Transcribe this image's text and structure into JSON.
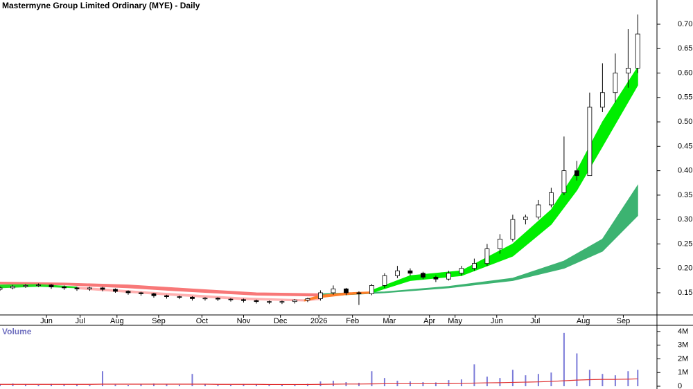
{
  "chart_data": [
    {
      "type": "candlestick",
      "title": "Mastermyne Group Limited Ordinary (MYE) - Daily",
      "x": [
        0,
        8,
        16,
        24,
        32,
        40,
        48,
        56,
        64,
        72,
        80,
        88,
        96,
        104,
        112,
        120,
        128,
        136,
        144,
        152,
        160,
        168,
        176,
        184,
        192,
        200,
        208,
        216,
        224,
        232,
        240,
        248,
        256,
        264,
        272,
        280,
        288,
        296,
        304,
        312,
        320,
        328,
        336,
        344,
        352,
        360,
        368,
        376,
        384,
        392,
        398
      ],
      "open": [
        0.157,
        0.16,
        0.163,
        0.165,
        0.166,
        0.162,
        0.16,
        0.158,
        0.16,
        0.157,
        0.153,
        0.15,
        0.148,
        0.144,
        0.142,
        0.141,
        0.138,
        0.139,
        0.137,
        0.136,
        0.134,
        0.132,
        0.131,
        0.132,
        0.135,
        0.138,
        0.15,
        0.158,
        0.15,
        0.148,
        0.165,
        0.185,
        0.195,
        0.19,
        0.182,
        0.178,
        0.19,
        0.2,
        0.21,
        0.24,
        0.26,
        0.3,
        0.305,
        0.33,
        0.355,
        0.4,
        0.39,
        0.53,
        0.56,
        0.6,
        0.61
      ],
      "high": [
        0.163,
        0.166,
        0.168,
        0.169,
        0.168,
        0.165,
        0.162,
        0.162,
        0.162,
        0.159,
        0.155,
        0.152,
        0.15,
        0.146,
        0.144,
        0.143,
        0.141,
        0.141,
        0.139,
        0.138,
        0.136,
        0.134,
        0.134,
        0.137,
        0.14,
        0.155,
        0.165,
        0.16,
        0.153,
        0.168,
        0.19,
        0.205,
        0.2,
        0.193,
        0.185,
        0.195,
        0.205,
        0.22,
        0.25,
        0.27,
        0.31,
        0.31,
        0.34,
        0.365,
        0.47,
        0.42,
        0.56,
        0.62,
        0.64,
        0.69,
        0.72
      ],
      "low": [
        0.154,
        0.157,
        0.16,
        0.162,
        0.158,
        0.156,
        0.154,
        0.154,
        0.153,
        0.15,
        0.146,
        0.144,
        0.14,
        0.138,
        0.137,
        0.134,
        0.134,
        0.133,
        0.132,
        0.13,
        0.128,
        0.127,
        0.127,
        0.128,
        0.131,
        0.134,
        0.146,
        0.145,
        0.125,
        0.145,
        0.16,
        0.18,
        0.185,
        0.178,
        0.172,
        0.175,
        0.185,
        0.195,
        0.205,
        0.23,
        0.255,
        0.29,
        0.3,
        0.325,
        0.35,
        0.38,
        0.39,
        0.52,
        0.54,
        0.57,
        0.6
      ],
      "close": [
        0.16,
        0.163,
        0.165,
        0.166,
        0.162,
        0.16,
        0.158,
        0.16,
        0.157,
        0.153,
        0.15,
        0.148,
        0.144,
        0.142,
        0.141,
        0.138,
        0.139,
        0.137,
        0.136,
        0.134,
        0.132,
        0.131,
        0.132,
        0.135,
        0.138,
        0.15,
        0.158,
        0.15,
        0.148,
        0.165,
        0.185,
        0.195,
        0.19,
        0.182,
        0.178,
        0.19,
        0.2,
        0.21,
        0.24,
        0.26,
        0.3,
        0.305,
        0.33,
        0.355,
        0.4,
        0.39,
        0.53,
        0.56,
        0.6,
        0.61,
        0.68
      ],
      "bands": [
        {
          "color": "#f87878",
          "x": [
            0,
            40,
            80,
            120,
            160,
            200
          ],
          "upper": [
            0.172,
            0.17,
            0.166,
            0.158,
            0.15,
            0.148
          ],
          "lower": [
            0.168,
            0.166,
            0.16,
            0.152,
            0.145,
            0.143
          ]
        },
        {
          "color": "#3cb371",
          "x": [
            200,
            240,
            280,
            320,
            352,
            376,
            398
          ],
          "upper": [
            0.148,
            0.152,
            0.163,
            0.18,
            0.215,
            0.26,
            0.37
          ],
          "lower": [
            0.143,
            0.15,
            0.16,
            0.175,
            0.2,
            0.235,
            0.308
          ]
        },
        {
          "color": "#ffb0b0",
          "x": [
            48,
            100,
            150,
            190,
            200
          ],
          "upper": [
            0.162,
            0.15,
            0.14,
            0.136,
            0.14
          ],
          "lower": [
            0.158,
            0.146,
            0.136,
            0.133,
            0.136
          ]
        },
        {
          "color": "#ff7f2a",
          "x": [
            190,
            200,
            216,
            232
          ],
          "upper": [
            0.136,
            0.145,
            0.15,
            0.152
          ],
          "lower": [
            0.133,
            0.14,
            0.146,
            0.149
          ]
        },
        {
          "color": "#22dd22",
          "x": [
            0,
            24,
            48
          ],
          "upper": [
            0.166,
            0.167,
            0.162
          ],
          "lower": [
            0.16,
            0.163,
            0.16
          ]
        },
        {
          "color": "#00ee00",
          "x": [
            232,
            256,
            288,
            320,
            344,
            360,
            376,
            398
          ],
          "upper": [
            0.155,
            0.185,
            0.195,
            0.25,
            0.32,
            0.4,
            0.5,
            0.612
          ],
          "lower": [
            0.15,
            0.175,
            0.185,
            0.225,
            0.29,
            0.36,
            0.45,
            0.575
          ]
        }
      ],
      "xlim": [
        0,
        410
      ],
      "xticks": [
        {
          "value": 29,
          "label": "Jun"
        },
        {
          "value": 50,
          "label": "Jul"
        },
        {
          "value": 73,
          "label": "Aug"
        },
        {
          "value": 99,
          "label": "Sep"
        },
        {
          "value": 126,
          "label": "Oct"
        },
        {
          "value": 152,
          "label": "Nov"
        },
        {
          "value": 175,
          "label": "Dec"
        },
        {
          "value": 199,
          "label": "2026"
        },
        {
          "value": 220,
          "label": "Feb"
        },
        {
          "value": 243,
          "label": "Mar"
        },
        {
          "value": 268,
          "label": "Apr"
        },
        {
          "value": 284,
          "label": "May"
        },
        {
          "value": 310,
          "label": "Jun"
        },
        {
          "value": 334,
          "label": "Jul"
        },
        {
          "value": 364,
          "label": "Aug"
        },
        {
          "value": 389,
          "label": "Sep"
        }
      ],
      "ylim": [
        0.1046,
        0.7496
      ],
      "yticks": [
        {
          "value": 0.15,
          "label": "0.15"
        },
        {
          "value": 0.2,
          "label": "0.20"
        },
        {
          "value": 0.25,
          "label": "0.25"
        },
        {
          "value": 0.3,
          "label": "0.30"
        },
        {
          "value": 0.35,
          "label": "0.35"
        },
        {
          "value": 0.4,
          "label": "0.40"
        },
        {
          "value": 0.45,
          "label": "0.45"
        },
        {
          "value": 0.5,
          "label": "0.50"
        },
        {
          "value": 0.55,
          "label": "0.55"
        },
        {
          "value": 0.6,
          "label": "0.60"
        },
        {
          "value": 0.65,
          "label": "0.65"
        },
        {
          "value": 0.7,
          "label": "0.70"
        }
      ]
    },
    {
      "type": "bar",
      "title": "Volume",
      "color": "#7a7ad8",
      "line_color": "#e03030",
      "x": [
        0,
        8,
        16,
        24,
        32,
        40,
        48,
        56,
        64,
        72,
        80,
        88,
        96,
        104,
        112,
        120,
        128,
        136,
        144,
        152,
        160,
        168,
        176,
        184,
        192,
        200,
        208,
        216,
        224,
        232,
        240,
        248,
        256,
        264,
        272,
        280,
        288,
        296,
        304,
        312,
        320,
        328,
        336,
        344,
        352,
        360,
        368,
        376,
        384,
        392,
        398
      ],
      "values": [
        150000,
        200000,
        120000,
        100000,
        180000,
        150000,
        130000,
        100000,
        1100000,
        120000,
        100000,
        150000,
        200000,
        140000,
        110000,
        900000,
        130000,
        120000,
        100000,
        160000,
        140000,
        110000,
        100000,
        150000,
        180000,
        350000,
        400000,
        300000,
        250000,
        1100000,
        600000,
        400000,
        350000,
        300000,
        280000,
        450000,
        500000,
        1600000,
        700000,
        600000,
        1200000,
        800000,
        900000,
        1000000,
        3900000,
        2400000,
        1200000,
        900000,
        800000,
        1100000,
        1200000
      ],
      "average": [
        140000,
        140000,
        140000,
        140000,
        140000,
        140000,
        140000,
        140000,
        150000,
        150000,
        150000,
        150000,
        150000,
        150000,
        150000,
        150000,
        150000,
        140000,
        140000,
        140000,
        140000,
        130000,
        130000,
        130000,
        130000,
        140000,
        150000,
        160000,
        160000,
        170000,
        180000,
        180000,
        180000,
        180000,
        180000,
        190000,
        200000,
        230000,
        250000,
        260000,
        280000,
        300000,
        320000,
        350000,
        400000,
        450000,
        480000,
        500000,
        500000,
        520000,
        540000
      ],
      "xlim": [
        0,
        410
      ],
      "ylim": [
        0,
        4500000
      ],
      "yticks": [
        0,
        {
          "value": 1000000,
          "label": "1M"
        },
        {
          "value": 2000000,
          "label": "2M"
        },
        {
          "value": 3000000,
          "label": "3M"
        },
        {
          "value": 4000000,
          "label": "4M"
        }
      ]
    }
  ]
}
